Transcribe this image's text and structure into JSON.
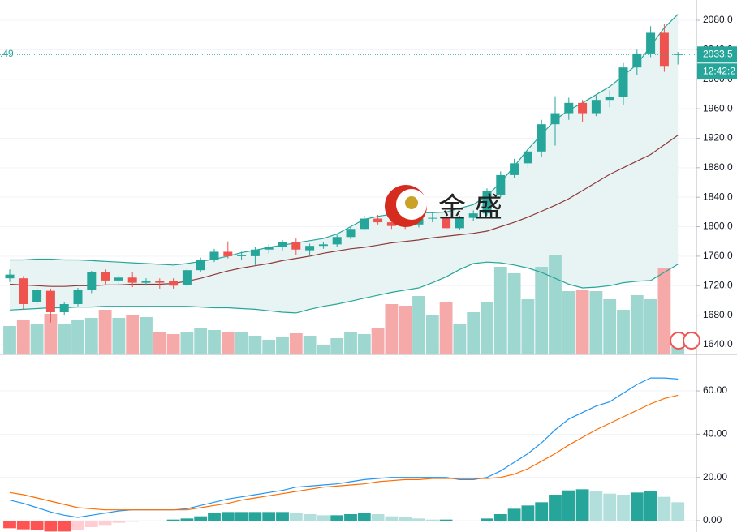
{
  "chart_data": {
    "type": "candlestick",
    "left_label": ".49",
    "watermark": "金 盛",
    "last_price": 2033.5,
    "countdown": "12:42:2",
    "open": [
      1730,
      1730,
      1698,
      1713,
      1684,
      1695,
      1714,
      1738,
      1727,
      1731,
      1724,
      1726,
      1726,
      1721,
      1741,
      1755,
      1766,
      1760,
      1760,
      1769,
      1772,
      1779,
      1768,
      1774,
      1776,
      1786,
      1797,
      1811,
      1806,
      1806,
      1803,
      1811,
      1812,
      1798,
      1812,
      1818,
      1843,
      1870,
      1886,
      1902,
      1939,
      1954,
      1968,
      1954,
      1972,
      1976,
      2016,
      2035,
      2063,
      2033
    ],
    "high": [
      1742,
      1733,
      1718,
      1716,
      1698,
      1717,
      1740,
      1742,
      1735,
      1738,
      1730,
      1730,
      1730,
      1744,
      1758,
      1770,
      1780,
      1766,
      1772,
      1776,
      1782,
      1784,
      1777,
      1779,
      1790,
      1800,
      1815,
      1816,
      1810,
      1812,
      1815,
      1820,
      1822,
      1815,
      1822,
      1852,
      1875,
      1892,
      1906,
      1945,
      1977,
      1975,
      1972,
      1978,
      1985,
      2022,
      2040,
      2072,
      2075,
      2037
    ],
    "low": [
      1725,
      1688,
      1694,
      1670,
      1680,
      1692,
      1710,
      1722,
      1720,
      1718,
      1720,
      1716,
      1716,
      1718,
      1738,
      1752,
      1757,
      1755,
      1748,
      1764,
      1768,
      1762,
      1762,
      1770,
      1772,
      1783,
      1795,
      1803,
      1797,
      1797,
      1799,
      1806,
      1795,
      1796,
      1808,
      1815,
      1840,
      1866,
      1880,
      1895,
      1910,
      1945,
      1942,
      1950,
      1962,
      1965,
      2006,
      2030,
      2010,
      2020
    ],
    "close": [
      1735,
      1695,
      1714,
      1684,
      1695,
      1714,
      1738,
      1727,
      1731,
      1724,
      1726,
      1724,
      1720,
      1741,
      1755,
      1766,
      1760,
      1762,
      1769,
      1772,
      1779,
      1769,
      1774,
      1776,
      1786,
      1797,
      1811,
      1806,
      1801,
      1801,
      1811,
      1812,
      1798,
      1812,
      1818,
      1848,
      1870,
      1886,
      1902,
      1939,
      1954,
      1968,
      1954,
      1972,
      1976,
      2016,
      2035,
      2063,
      2017,
      2034
    ],
    "colors": {
      "up": "#26a69a",
      "down": "#ef5350"
    },
    "bands": {
      "upper": [
        1755,
        1755,
        1756,
        1756,
        1755,
        1755,
        1754,
        1753,
        1752,
        1751,
        1750,
        1749,
        1748,
        1750,
        1753,
        1756,
        1760,
        1765,
        1768,
        1772,
        1775,
        1778,
        1781,
        1784,
        1790,
        1800,
        1810,
        1814,
        1817,
        1818,
        1819,
        1819,
        1820,
        1825,
        1830,
        1842,
        1860,
        1882,
        1905,
        1925,
        1945,
        1958,
        1968,
        1979,
        1990,
        2005,
        2020,
        2045,
        2070,
        2088
      ],
      "middle": [
        1722,
        1721,
        1720,
        1719,
        1719,
        1720,
        1720,
        1721,
        1721,
        1722,
        1722,
        1722,
        1723,
        1726,
        1730,
        1735,
        1740,
        1744,
        1747,
        1750,
        1754,
        1757,
        1760,
        1764,
        1767,
        1770,
        1772,
        1775,
        1778,
        1780,
        1782,
        1785,
        1787,
        1789,
        1791,
        1794,
        1800,
        1806,
        1813,
        1821,
        1829,
        1838,
        1849,
        1860,
        1871,
        1880,
        1889,
        1898,
        1911,
        1924
      ],
      "lower": [
        1687,
        1688,
        1689,
        1690,
        1690,
        1691,
        1691,
        1692,
        1692,
        1692,
        1692,
        1692,
        1692,
        1692,
        1691,
        1690,
        1690,
        1689,
        1688,
        1686,
        1684,
        1683,
        1688,
        1692,
        1695,
        1699,
        1703,
        1707,
        1711,
        1714,
        1717,
        1724,
        1732,
        1742,
        1750,
        1752,
        1751,
        1748,
        1744,
        1738,
        1730,
        1722,
        1717,
        1718,
        1720,
        1724,
        1726,
        1727,
        1738,
        1749
      ],
      "colors": {
        "band": "#26a69a",
        "middle": "#8d3a3a",
        "fill": "#e7f4f3"
      }
    },
    "volume": {
      "values": [
        35,
        42,
        38,
        50,
        38,
        42,
        45,
        55,
        45,
        48,
        46,
        28,
        25,
        28,
        33,
        30,
        28,
        28,
        23,
        18,
        22,
        26,
        23,
        12,
        20,
        27,
        25,
        32,
        62,
        60,
        72,
        48,
        65,
        38,
        52,
        65,
        108,
        100,
        68,
        108,
        122,
        78,
        80,
        78,
        68,
        55,
        73,
        68,
        107,
        10
      ],
      "colors": {
        "up": "#9ed6d0",
        "down": "#f5a9a9"
      }
    },
    "ylim": [
      1626.8,
      2107.5
    ],
    "yticks": [
      {
        "value": 1640,
        "label": "1640.0"
      },
      {
        "value": 1680,
        "label": "1680.0"
      },
      {
        "value": 1720,
        "label": "1720.0"
      },
      {
        "value": 1760,
        "label": "1760.0"
      },
      {
        "value": 1800,
        "label": "1800.0"
      },
      {
        "value": 1840,
        "label": "1840.0"
      },
      {
        "value": 1880,
        "label": "1880.0"
      },
      {
        "value": 1920,
        "label": "1920.0"
      },
      {
        "value": 1960,
        "label": "1960.0"
      },
      {
        "value": 2000,
        "label": "2000.0"
      },
      {
        "value": 2040,
        "label": "2040.0"
      },
      {
        "value": 2080,
        "label": "2080.0"
      }
    ],
    "macd": {
      "macd": [
        9.5,
        8,
        6,
        4,
        2.5,
        1.5,
        2.5,
        3.5,
        4.5,
        5,
        5,
        5,
        5,
        5.5,
        7,
        8.5,
        10,
        11,
        12,
        13,
        14,
        15.5,
        16,
        16.5,
        17,
        18,
        19,
        19.5,
        20,
        20,
        20,
        20,
        20,
        19,
        19,
        20,
        23,
        27,
        31,
        36,
        42,
        47,
        50,
        53,
        55,
        59,
        63,
        66,
        66,
        65.5
      ],
      "signal": [
        13,
        12,
        10.5,
        9,
        7.5,
        6,
        5.5,
        5,
        5,
        5,
        5,
        5,
        5,
        5,
        6,
        7,
        8,
        9.5,
        10.5,
        11.5,
        12.5,
        13.5,
        14.5,
        15.5,
        16,
        16.5,
        17,
        18,
        18.5,
        19,
        19,
        19.5,
        19.5,
        19.5,
        19.5,
        19.5,
        20,
        21.5,
        24,
        27.5,
        31,
        35,
        38.5,
        42,
        45,
        48,
        51,
        54,
        56.5,
        58
      ],
      "hist": [
        -3.5,
        -4,
        -4.5,
        -5,
        -5,
        -4.5,
        -3,
        -2,
        -1,
        -0.5,
        0,
        0,
        0.5,
        1,
        2,
        3.5,
        4,
        4,
        4,
        4,
        4,
        3.5,
        3,
        2.5,
        2.5,
        3,
        3.5,
        3,
        2,
        1.5,
        1,
        0.5,
        0.5,
        0,
        0,
        1,
        3,
        5.5,
        7,
        8.5,
        12,
        14,
        14.5,
        13.5,
        12.5,
        12,
        13,
        13.5,
        11,
        8.5
      ],
      "colors": {
        "macd": "#2196f3",
        "signal": "#ff6d00",
        "up_strong": "#26a69a",
        "up_weak": "#b2dfdb",
        "down_strong": "#ff5252",
        "down_weak": "#ffcdd2"
      },
      "ylim": [
        -5.25,
        76.9
      ],
      "yticks": [
        {
          "value": 0,
          "label": "0.00"
        },
        {
          "value": 20,
          "label": "20.00"
        },
        {
          "value": 40,
          "label": "40.00"
        },
        {
          "value": 60,
          "label": "60.00"
        }
      ]
    }
  }
}
